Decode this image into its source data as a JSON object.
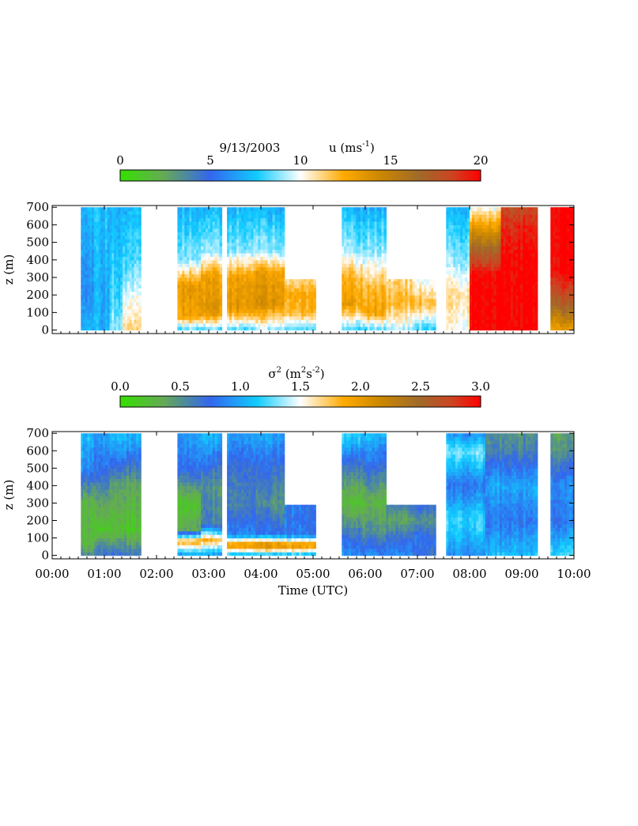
{
  "chart_data": [
    {
      "type": "heatmap",
      "title": "9/13/2003",
      "colorbar": {
        "label_main": "u (ms",
        "label_exp": "-1",
        "label_close": ")",
        "range": [
          0,
          20
        ],
        "ticks": [
          "0",
          "5",
          "10",
          "15",
          "20"
        ]
      },
      "ylabel": "z (m)",
      "ylim": [
        -20,
        710
      ],
      "yticks": [
        "0",
        "100",
        "200",
        "300",
        "400",
        "500",
        "600",
        "700"
      ],
      "xlim": [
        0,
        10
      ],
      "data_blocks": [
        {
          "t0": 0.55,
          "t1": 0.8,
          "ztop": 700,
          "profile": [
            [
              0,
              7
            ],
            [
              200,
              6
            ],
            [
              700,
              7
            ]
          ]
        },
        {
          "t0": 0.8,
          "t1": 1.1,
          "ztop": 700,
          "profile": [
            [
              0,
              7
            ],
            [
              300,
              7
            ],
            [
              700,
              7.5
            ]
          ]
        },
        {
          "t0": 1.1,
          "t1": 1.35,
          "ztop": 700,
          "profile": [
            [
              0,
              9
            ],
            [
              200,
              8
            ],
            [
              700,
              7
            ]
          ]
        },
        {
          "t0": 1.35,
          "t1": 1.7,
          "ztop": 700,
          "profile": [
            [
              0,
              11
            ],
            [
              150,
              10
            ],
            [
              400,
              8
            ],
            [
              700,
              7
            ]
          ]
        },
        {
          "t0": 2.4,
          "t1": 2.85,
          "ztop": 700,
          "profile": [
            [
              0,
              8
            ],
            [
              80,
              13
            ],
            [
              250,
              13.5
            ],
            [
              400,
              9
            ],
            [
              700,
              7
            ]
          ]
        },
        {
          "t0": 2.85,
          "t1": 3.25,
          "ztop": 700,
          "profile": [
            [
              0,
              8
            ],
            [
              100,
              13.5
            ],
            [
              300,
              13
            ],
            [
              450,
              9
            ],
            [
              700,
              7
            ]
          ]
        },
        {
          "t0": 3.35,
          "t1": 3.9,
          "ztop": 700,
          "profile": [
            [
              0,
              8
            ],
            [
              120,
              13.5
            ],
            [
              300,
              13
            ],
            [
              450,
              9
            ],
            [
              700,
              7
            ]
          ]
        },
        {
          "t0": 3.9,
          "t1": 4.45,
          "ztop": 700,
          "profile": [
            [
              0,
              9
            ],
            [
              150,
              14
            ],
            [
              330,
              13
            ],
            [
              450,
              9
            ],
            [
              700,
              7
            ]
          ]
        },
        {
          "t0": 4.45,
          "t1": 5.05,
          "ztop": 290,
          "profile": [
            [
              0,
              8
            ],
            [
              100,
              12
            ],
            [
              200,
              12.5
            ],
            [
              290,
              11
            ]
          ]
        },
        {
          "t0": 5.55,
          "t1": 5.95,
          "ztop": 700,
          "profile": [
            [
              0,
              8
            ],
            [
              150,
              13
            ],
            [
              300,
              12
            ],
            [
              450,
              9
            ],
            [
              700,
              7
            ]
          ]
        },
        {
          "t0": 5.95,
          "t1": 6.4,
          "ztop": 700,
          "profile": [
            [
              0,
              8
            ],
            [
              100,
              13
            ],
            [
              250,
              12
            ],
            [
              450,
              9
            ],
            [
              700,
              7
            ]
          ]
        },
        {
          "t0": 6.4,
          "t1": 6.9,
          "ztop": 290,
          "profile": [
            [
              0,
              9
            ],
            [
              150,
              12
            ],
            [
              290,
              11
            ]
          ]
        },
        {
          "t0": 6.9,
          "t1": 7.35,
          "ztop": 290,
          "profile": [
            [
              0,
              8
            ],
            [
              150,
              12
            ],
            [
              290,
              10
            ]
          ]
        },
        {
          "t0": 7.55,
          "t1": 8.0,
          "ztop": 700,
          "profile": [
            [
              0,
              10
            ],
            [
              200,
              11
            ],
            [
              400,
              9
            ],
            [
              700,
              7
            ]
          ]
        },
        {
          "t0": 8.0,
          "t1": 8.6,
          "ztop": 700,
          "profile": [
            [
              0,
              20
            ],
            [
              300,
              20
            ],
            [
              450,
              17
            ],
            [
              600,
              13
            ],
            [
              700,
              10
            ]
          ]
        },
        {
          "t0": 8.6,
          "t1": 9.3,
          "ztop": 700,
          "profile": [
            [
              0,
              20
            ],
            [
              400,
              20
            ],
            [
              600,
              19
            ],
            [
              700,
              18
            ]
          ]
        },
        {
          "t0": 9.55,
          "t1": 10.0,
          "ztop": 700,
          "profile": [
            [
              0,
              13
            ],
            [
              150,
              17
            ],
            [
              350,
              20
            ],
            [
              700,
              20
            ]
          ]
        }
      ]
    },
    {
      "type": "heatmap",
      "colorbar": {
        "label_main": "σ",
        "label_exp": "2",
        "label_mid": " (m",
        "label_exp2": "2",
        "label_mid2": "s",
        "label_exp3": "-2",
        "label_close": ")",
        "range": [
          0,
          3
        ],
        "ticks": [
          "0.0",
          "0.5",
          "1.0",
          "1.5",
          "2.0",
          "2.5",
          "3.0"
        ]
      },
      "ylabel": "z (m)",
      "ylim": [
        -20,
        710
      ],
      "yticks": [
        "0",
        "100",
        "200",
        "300",
        "400",
        "500",
        "600",
        "700"
      ],
      "xlabel": "Time (UTC)",
      "xlim": [
        0,
        10
      ],
      "xticks": [
        "00:00",
        "01:00",
        "02:00",
        "03:00",
        "04:00",
        "05:00",
        "06:00",
        "07:00",
        "08:00",
        "09:00",
        "10:00"
      ],
      "data_blocks": [
        {
          "t0": 0.55,
          "t1": 0.8,
          "ztop": 700,
          "profile": [
            [
              0,
              0.6
            ],
            [
              60,
              0.3
            ],
            [
              300,
              0.3
            ],
            [
              500,
              0.9
            ],
            [
              700,
              1.1
            ]
          ]
        },
        {
          "t0": 0.8,
          "t1": 1.1,
          "ztop": 700,
          "profile": [
            [
              0,
              0.7
            ],
            [
              50,
              0.6
            ],
            [
              150,
              0.2
            ],
            [
              350,
              0.5
            ],
            [
              500,
              0.8
            ],
            [
              700,
              1.0
            ]
          ]
        },
        {
          "t0": 1.1,
          "t1": 1.7,
          "ztop": 700,
          "profile": [
            [
              0,
              0.7
            ],
            [
              50,
              0.5
            ],
            [
              150,
              0.2
            ],
            [
              400,
              0.4
            ],
            [
              600,
              0.9
            ],
            [
              700,
              1.1
            ]
          ]
        },
        {
          "t0": 2.4,
          "t1": 2.85,
          "ztop": 700,
          "profile": [
            [
              0,
              0.9
            ],
            [
              80,
              1.9
            ],
            [
              150,
              0.4
            ],
            [
              300,
              0.2
            ],
            [
              500,
              0.8
            ],
            [
              700,
              1.0
            ]
          ]
        },
        {
          "t0": 2.85,
          "t1": 3.25,
          "ztop": 700,
          "profile": [
            [
              0,
              0.9
            ],
            [
              90,
              1.8
            ],
            [
              180,
              0.6
            ],
            [
              400,
              0.5
            ],
            [
              600,
              0.9
            ],
            [
              700,
              1.1
            ]
          ]
        },
        {
          "t0": 3.35,
          "t1": 3.9,
          "ztop": 700,
          "profile": [
            [
              0,
              1.0
            ],
            [
              60,
              2.1
            ],
            [
              120,
              0.9
            ],
            [
              300,
              0.6
            ],
            [
              500,
              0.7
            ],
            [
              700,
              1.0
            ]
          ]
        },
        {
          "t0": 3.9,
          "t1": 4.45,
          "ztop": 700,
          "profile": [
            [
              0,
              1.0
            ],
            [
              60,
              2.2
            ],
            [
              120,
              0.8
            ],
            [
              300,
              0.5
            ],
            [
              500,
              0.7
            ],
            [
              700,
              1.0
            ]
          ]
        },
        {
          "t0": 4.45,
          "t1": 5.05,
          "ztop": 290,
          "profile": [
            [
              0,
              1.0
            ],
            [
              60,
              2.1
            ],
            [
              120,
              0.8
            ],
            [
              290,
              0.8
            ]
          ]
        },
        {
          "t0": 5.55,
          "t1": 5.95,
          "ztop": 700,
          "profile": [
            [
              0,
              0.9
            ],
            [
              100,
              0.7
            ],
            [
              300,
              0.2
            ],
            [
              500,
              0.6
            ],
            [
              700,
              1.2
            ]
          ]
        },
        {
          "t0": 5.95,
          "t1": 6.4,
          "ztop": 700,
          "profile": [
            [
              0,
              0.9
            ],
            [
              150,
              0.5
            ],
            [
              300,
              0.3
            ],
            [
              500,
              0.7
            ],
            [
              700,
              1.1
            ]
          ]
        },
        {
          "t0": 6.4,
          "t1": 6.9,
          "ztop": 290,
          "profile": [
            [
              0,
              0.9
            ],
            [
              100,
              0.7
            ],
            [
              200,
              0.4
            ],
            [
              290,
              0.6
            ]
          ]
        },
        {
          "t0": 6.9,
          "t1": 7.35,
          "ztop": 290,
          "profile": [
            [
              0,
              0.7
            ],
            [
              100,
              0.8
            ],
            [
              200,
              0.5
            ],
            [
              290,
              0.7
            ]
          ]
        },
        {
          "t0": 7.55,
          "t1": 8.3,
          "ztop": 700,
          "profile": [
            [
              0,
              0.9
            ],
            [
              200,
              1.2
            ],
            [
              400,
              0.8
            ],
            [
              600,
              1.3
            ],
            [
              700,
              0.9
            ]
          ]
        },
        {
          "t0": 8.3,
          "t1": 9.3,
          "ztop": 700,
          "profile": [
            [
              0,
              1.1
            ],
            [
              200,
              0.8
            ],
            [
              400,
              1.0
            ],
            [
              600,
              0.6
            ],
            [
              700,
              0.5
            ]
          ]
        },
        {
          "t0": 9.55,
          "t1": 10.0,
          "ztop": 700,
          "profile": [
            [
              0,
              1.2
            ],
            [
              200,
              0.8
            ],
            [
              400,
              0.9
            ],
            [
              600,
              0.5
            ],
            [
              700,
              0.4
            ]
          ]
        }
      ]
    }
  ]
}
